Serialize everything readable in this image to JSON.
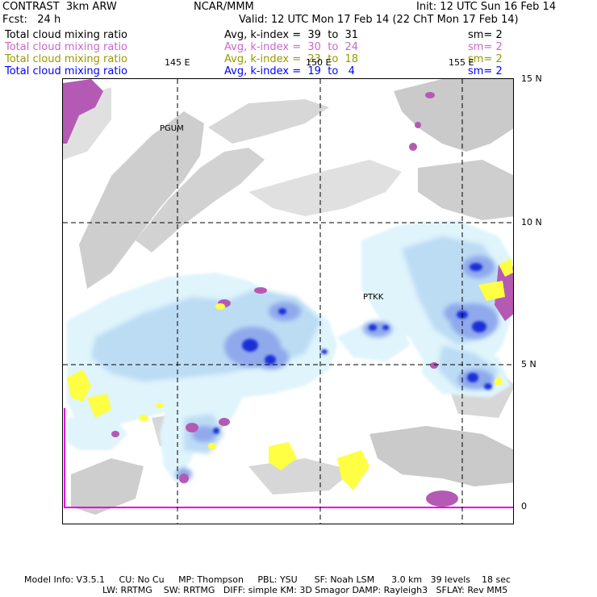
{
  "header": {
    "model": "CONTRAST  3km ARW",
    "center": "NCAR/MMM",
    "init": "Init: 12 UTC Sun 16 Feb 14",
    "fcst": "Fcst:   24 h",
    "valid": "Valid: 12 UTC Mon 17 Feb 14 (22 ChT Mon 17 Feb 14)"
  },
  "fields": [
    {
      "name": "Total cloud mixing ratio",
      "stat": "Avg, k-index =  39  to  31",
      "sm": "sm= 2",
      "color": "#000000"
    },
    {
      "name": "Total cloud mixing ratio",
      "stat": "Avg, k-index =  30  to  24",
      "sm": "sm= 2",
      "color": "#cc66cc"
    },
    {
      "name": "Total cloud mixing ratio",
      "stat": "Avg, k-index =  23  to  18",
      "sm": "sm= 2",
      "color": "#999900"
    },
    {
      "name": "Total cloud mixing ratio",
      "stat": "Avg, k-index =  19  to   4",
      "sm": "sm= 2",
      "color": "#0000ff"
    }
  ],
  "axes": {
    "lon_labels": [
      "145 E",
      "150 E",
      "155 E"
    ],
    "lat_labels": [
      "15 N",
      "10 N",
      "5 N",
      "0"
    ],
    "lon_range": [
      140.5,
      156.5
    ],
    "lat_range": [
      -0.6,
      15.1
    ],
    "grid": "dashed"
  },
  "stations": [
    {
      "id": "PGUM",
      "lon": 144.8,
      "lat": 13.5
    },
    {
      "id": "PTKK",
      "lon": 151.8,
      "lat": 7.4
    }
  ],
  "colors": {
    "gray": "#a6a6a6",
    "pale_blue": "#dff4fb",
    "light_blue": "#bcdcf4",
    "mid_blue": "#8fa9ec",
    "deep_blue": "#1a2fd8",
    "purple": "#b45ab4",
    "yellow": "#ffff44",
    "magenta": "#e000e0"
  },
  "footer": {
    "line1": "Model Info: V3.5.1     CU: No Cu     MP: Thompson     PBL: YSU      SF: Noah LSM      3.0 km   39 levels    18 sec",
    "line2": "LW: RRTMG    SW: RRTMG   DIFF: simple KM: 3D Smagor DAMP: Rayleigh3   SFLAY: Rev MM5"
  }
}
